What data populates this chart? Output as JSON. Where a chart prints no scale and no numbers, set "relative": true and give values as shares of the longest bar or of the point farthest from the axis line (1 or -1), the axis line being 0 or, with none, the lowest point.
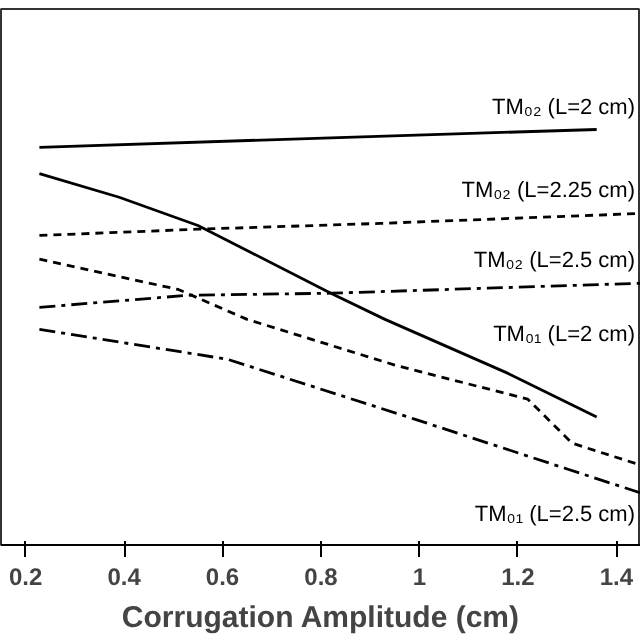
{
  "chart_data": {
    "type": "line",
    "xlabel": "Corrugation Amplitude (cm)",
    "relative": true,
    "xlim": [
      0.15,
      1.45
    ],
    "xticks": [
      0.2,
      0.4,
      0.6,
      0.8,
      1,
      1.2,
      1.4
    ],
    "grid": false,
    "series": [
      {
        "name": "TM₀₂ (L=2 cm)",
        "color": "#000000",
        "line_style": "solid",
        "x": [
          0.228,
          0.82,
          1.36
        ],
        "values": [
          0.957,
          0.98,
          1.0
        ]
      },
      {
        "name": "TM₀₁ (L=2 cm)",
        "color": "#000000",
        "line_style": "solid",
        "x": [
          0.228,
          0.39,
          0.55,
          0.82,
          0.93,
          1.18,
          1.36
        ],
        "values": [
          0.894,
          0.837,
          0.769,
          0.606,
          0.543,
          0.413,
          0.308
        ]
      },
      {
        "name": "TM₀₂ (L=2.25 cm)",
        "color": "#000000",
        "line_style": "dashed",
        "x": [
          0.228,
          0.55,
          0.92,
          1.45
        ],
        "values": [
          0.745,
          0.76,
          0.774,
          0.798
        ]
      },
      {
        "name": "TM₀₂ (L=2.5 cm)",
        "color": "#000000",
        "line_style": "dashdot",
        "x": [
          0.228,
          0.53,
          0.82,
          1.45
        ],
        "values": [
          0.572,
          0.601,
          0.606,
          0.63
        ]
      },
      {
        "color": "#000000",
        "line_style": "dashed",
        "x": [
          0.228,
          0.51,
          0.65,
          0.95,
          1.22,
          1.31,
          1.45
        ],
        "values": [
          0.688,
          0.615,
          0.543,
          0.433,
          0.351,
          0.245,
          0.192
        ]
      },
      {
        "name": "TM₀₁ (L=2.5 cm)",
        "color": "#000000",
        "line_style": "dashdot",
        "x": [
          0.228,
          0.61,
          0.99,
          1.3,
          1.45
        ],
        "values": [
          0.519,
          0.447,
          0.303,
          0.183,
          0.125
        ]
      }
    ]
  }
}
